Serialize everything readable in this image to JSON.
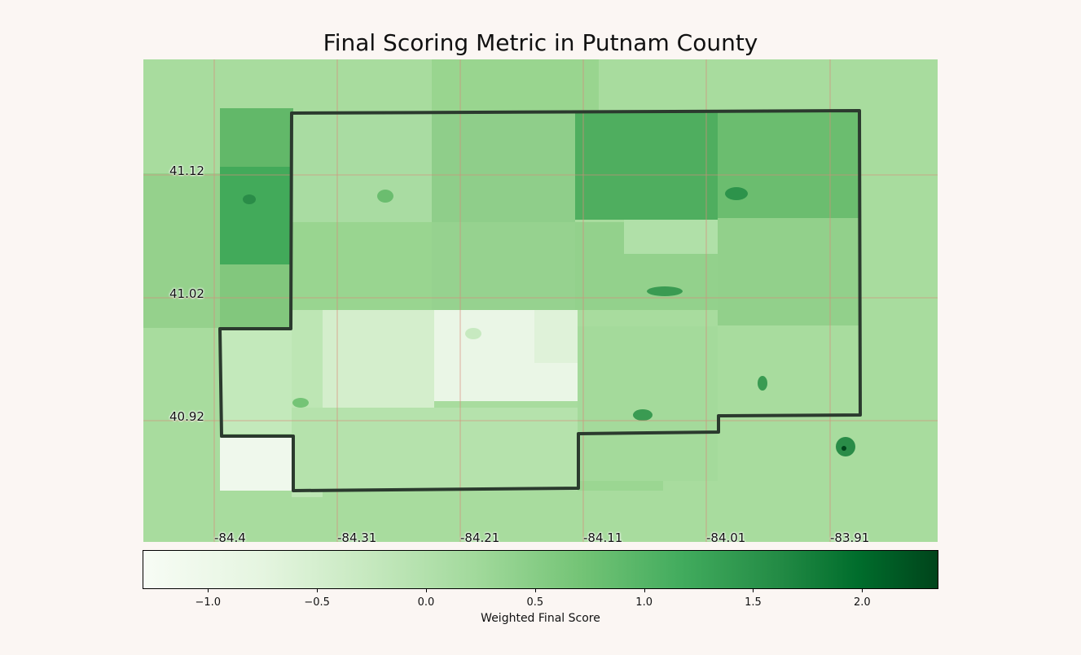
{
  "title": "Final Scoring Metric in Putnam County",
  "map": {
    "lat_labels": [
      "41.12",
      "41.02",
      "40.92"
    ],
    "lon_labels": [
      "-84.4",
      "-84.31",
      "-84.21",
      "-84.11",
      "-84.01",
      "-83.91"
    ],
    "colormap": "Greens",
    "boundary_color": "#2b3a2e",
    "grid_color": "#d98a7a"
  },
  "colorbar": {
    "label": "Weighted Final Score",
    "range": [
      -1.3,
      2.35
    ],
    "ticks": [
      {
        "value": -1.0,
        "label": "−1.0"
      },
      {
        "value": -0.5,
        "label": "−0.5"
      },
      {
        "value": 0.0,
        "label": "0.0"
      },
      {
        "value": 0.5,
        "label": "0.5"
      },
      {
        "value": 1.0,
        "label": "1.0"
      },
      {
        "value": 1.5,
        "label": "1.5"
      },
      {
        "value": 2.0,
        "label": "2.0"
      }
    ]
  }
}
